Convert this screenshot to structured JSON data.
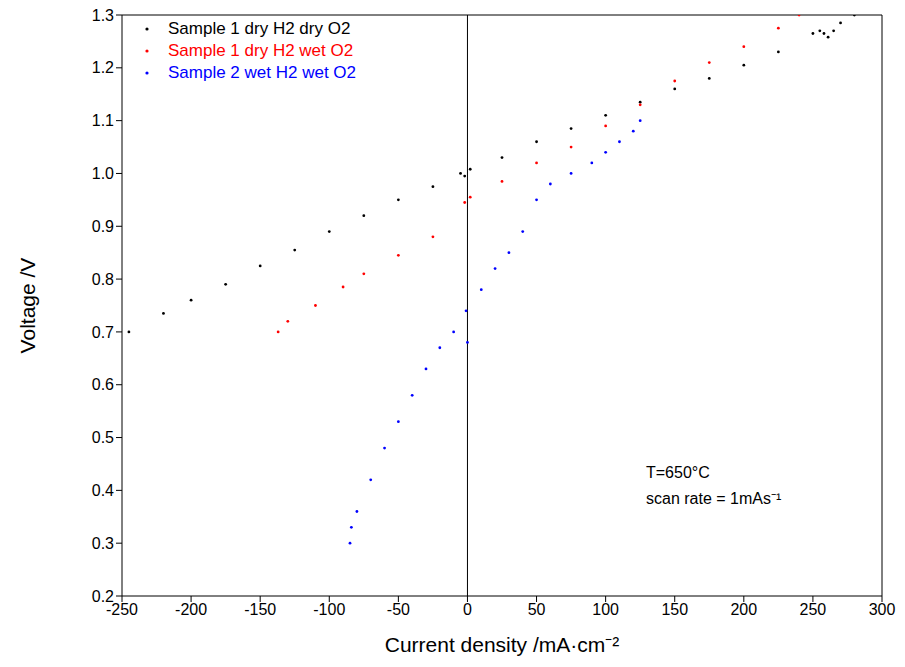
{
  "chart_data": {
    "type": "scatter",
    "xlabel": "Current density /mA·cm⁻²",
    "ylabel": "Voltage /V",
    "annotations": [
      "T=650°C",
      "scan rate = 1mAs⁻¹"
    ],
    "legend": "upper left",
    "grid": false,
    "marker": "circle",
    "reference_x": 0,
    "xlim": [
      -250,
      300
    ],
    "xticks": [
      -250,
      -200,
      -150,
      -100,
      -50,
      0,
      50,
      100,
      150,
      200,
      250,
      300
    ],
    "ylim": [
      0.2,
      1.3
    ],
    "yticks": [
      0.2,
      0.3,
      0.4,
      0.5,
      0.6,
      0.7,
      0.8,
      0.9,
      {
        "value": 1,
        "label": "1.0"
      },
      1.1,
      1.2,
      1.3
    ],
    "series": [
      {
        "name": "Sample 1 dry H2 dry O2",
        "color": "#000000",
        "x": [
          -245,
          -220,
          -200,
          -175,
          -150,
          -125,
          -100,
          -75,
          -50,
          -25,
          -5,
          -2,
          2,
          25,
          50,
          75,
          100,
          125,
          150,
          175,
          200,
          225,
          250,
          255,
          258,
          261,
          265,
          270,
          280
        ],
        "values": [
          0.7,
          0.735,
          0.76,
          0.79,
          0.825,
          0.855,
          0.89,
          0.92,
          0.95,
          0.975,
          1.0,
          0.995,
          1.008,
          1.03,
          1.06,
          1.085,
          1.11,
          1.135,
          1.16,
          1.18,
          1.205,
          1.23,
          1.265,
          1.27,
          1.265,
          1.258,
          1.27,
          1.285,
          1.3
        ]
      },
      {
        "name": "Sample 1 dry H2 wet O2",
        "color": "#ff0000",
        "x": [
          -137,
          -130,
          -110,
          -90,
          -75,
          -50,
          -25,
          -2,
          2,
          25,
          50,
          75,
          100,
          125,
          150,
          175,
          200,
          225,
          240
        ],
        "values": [
          0.7,
          0.72,
          0.75,
          0.785,
          0.81,
          0.845,
          0.88,
          0.945,
          0.955,
          0.985,
          1.02,
          1.05,
          1.09,
          1.13,
          1.175,
          1.21,
          1.24,
          1.275,
          1.3
        ]
      },
      {
        "name": "Sample 2 wet H2 wet O2",
        "color": "#0000ff",
        "x": [
          -85,
          -84,
          -80,
          -70,
          -60,
          -50,
          -40,
          -30,
          -20,
          -10,
          -1,
          0,
          10,
          20,
          30,
          40,
          50,
          60,
          75,
          90,
          100,
          110,
          120,
          125
        ],
        "values": [
          0.3,
          0.33,
          0.36,
          0.42,
          0.48,
          0.53,
          0.58,
          0.63,
          0.67,
          0.7,
          0.74,
          0.68,
          0.78,
          0.82,
          0.85,
          0.89,
          0.95,
          0.98,
          1.0,
          1.02,
          1.04,
          1.06,
          1.08,
          1.1
        ]
      }
    ]
  }
}
